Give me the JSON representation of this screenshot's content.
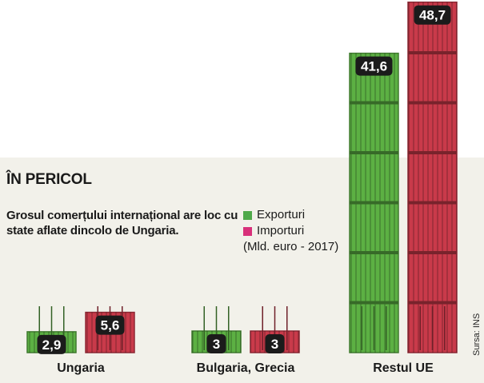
{
  "title": "ÎN PERICOL",
  "subtitle": "Grosul comerțului internațional are loc cu state aflate dincolo de Ungaria.",
  "legend": {
    "items": [
      {
        "label": "Exporturi",
        "color": "#4fa94a"
      },
      {
        "label": "Importuri",
        "color": "#d8307a"
      }
    ],
    "unit": "(Mld. euro - 2017)"
  },
  "source": "Sursa: INS",
  "chart_data": {
    "type": "bar",
    "categories": [
      "Ungaria",
      "Bulgaria, Grecia",
      "Restul UE"
    ],
    "series": [
      {
        "name": "Exporturi",
        "values": [
          2.9,
          3,
          41.6
        ],
        "labels": [
          "2,9",
          "3",
          "41,6"
        ],
        "color": "#5cb043"
      },
      {
        "name": "Importuri",
        "values": [
          5.6,
          3,
          48.7
        ],
        "labels": [
          "5,6",
          "3",
          "48,7"
        ],
        "color": "#c93a4a"
      }
    ],
    "title": "ÎN PERICOL",
    "xlabel": "",
    "ylabel": "",
    "unit": "Mld. euro - 2017"
  }
}
